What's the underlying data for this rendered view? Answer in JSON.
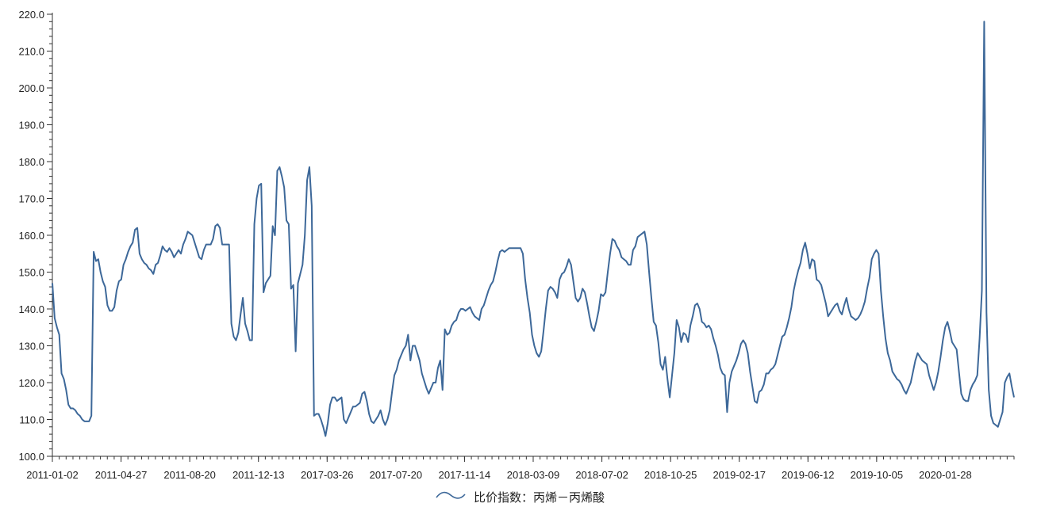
{
  "chart_data": {
    "type": "line",
    "title": "",
    "xlabel": "",
    "ylabel": "",
    "ylim": [
      100,
      220
    ],
    "y_ticks": [
      100.0,
      110.0,
      120.0,
      130.0,
      140.0,
      150.0,
      160.0,
      170.0,
      180.0,
      190.0,
      200.0,
      210.0,
      220.0
    ],
    "y_tick_labels": [
      "100.0",
      "110.0",
      "120.0",
      "130.0",
      "140.0",
      "150.0",
      "160.0",
      "170.0",
      "180.0",
      "190.0",
      "200.0",
      "210.0",
      "220.0"
    ],
    "x_tick_labels": [
      "2011-01-02",
      "2011-04-27",
      "2011-08-20",
      "2011-12-13",
      "2017-03-26",
      "2017-07-20",
      "2017-11-14",
      "2018-03-09",
      "2018-07-02",
      "2018-10-25",
      "2019-02-17",
      "2019-06-12",
      "2019-10-05",
      "2020-01-28"
    ],
    "grid": false,
    "legend_position": "bottom-center",
    "series": [
      {
        "name": "比价指数：丙烯－丙烯酸",
        "color": "#3d6899",
        "values": [
          147.0,
          137.5,
          135.0,
          133.0,
          122.5,
          121.0,
          118.0,
          114.0,
          113.0,
          113.0,
          112.5,
          111.5,
          111.0,
          110.0,
          109.5,
          109.5,
          109.5,
          111.0,
          155.5,
          153.0,
          153.5,
          150.0,
          147.5,
          146.0,
          141.0,
          139.5,
          139.5,
          140.5,
          145.0,
          147.5,
          148.0,
          152.0,
          153.5,
          155.5,
          157.0,
          158.0,
          161.5,
          162.0,
          155.0,
          153.5,
          152.5,
          152.0,
          151.0,
          150.5,
          149.5,
          152.0,
          152.5,
          154.5,
          157.0,
          156.0,
          155.5,
          156.5,
          155.5,
          154.0,
          155.0,
          156.0,
          155.0,
          157.5,
          159.0,
          161.0,
          160.5,
          160.0,
          158.0,
          156.0,
          154.0,
          153.5,
          156.0,
          157.5,
          157.5,
          157.5,
          159.0,
          162.5,
          163.0,
          162.0,
          157.5,
          157.5,
          157.5,
          157.5,
          136.0,
          132.5,
          131.5,
          133.5,
          138.5,
          143.0,
          136.0,
          134.0,
          131.5,
          131.5,
          163.0,
          170.0,
          173.5,
          174.0,
          144.5,
          147.0,
          148.0,
          149.0,
          162.5,
          160.0,
          177.5,
          178.5,
          176.0,
          173.0,
          164.0,
          163.0,
          145.5,
          146.5,
          128.5,
          147.0,
          149.5,
          152.0,
          160.0,
          175.0,
          178.5,
          168.0,
          111.0,
          111.5,
          111.5,
          110.0,
          108.0,
          105.5,
          109.0,
          114.0,
          116.0,
          116.0,
          115.0,
          115.5,
          116.0,
          110.0,
          109.0,
          110.5,
          112.0,
          113.5,
          113.5,
          114.0,
          114.5,
          117.0,
          117.5,
          115.0,
          111.5,
          109.5,
          109.0,
          110.0,
          111.0,
          112.5,
          110.0,
          108.5,
          110.0,
          112.5,
          117.5,
          122.0,
          123.5,
          126.0,
          127.5,
          129.0,
          130.0,
          133.0,
          126.0,
          130.0,
          130.0,
          128.0,
          126.0,
          122.5,
          120.5,
          118.5,
          117.0,
          118.5,
          120.0,
          120.0,
          124.0,
          126.0,
          118.0,
          134.5,
          133.0,
          133.5,
          135.5,
          136.5,
          137.0,
          139.0,
          140.0,
          140.0,
          139.5,
          140.0,
          140.5,
          139.0,
          138.0,
          137.5,
          137.0,
          140.0,
          141.0,
          143.0,
          145.0,
          146.5,
          147.5,
          150.0,
          153.0,
          155.5,
          156.0,
          155.5,
          156.0,
          156.5,
          156.5,
          156.5,
          156.5,
          156.5,
          156.5,
          155.0,
          148.0,
          143.0,
          139.0,
          133.0,
          130.0,
          128.0,
          127.0,
          128.5,
          134.0,
          140.0,
          145.0,
          146.0,
          145.5,
          144.5,
          143.0,
          148.0,
          149.5,
          150.0,
          151.5,
          153.5,
          152.0,
          147.5,
          143.0,
          142.0,
          143.0,
          145.5,
          144.5,
          141.5,
          138.0,
          135.0,
          134.0,
          136.5,
          139.5,
          144.0,
          143.5,
          144.5,
          150.0,
          155.0,
          159.0,
          158.5,
          157.0,
          156.0,
          154.0,
          153.5,
          153.0,
          152.0,
          152.0,
          156.0,
          157.0,
          159.5,
          160.0,
          160.5,
          161.0,
          157.5,
          150.0,
          143.0,
          136.5,
          135.5,
          131.0,
          125.0,
          123.5,
          127.0,
          121.0,
          116.0,
          122.0,
          128.0,
          137.0,
          135.0,
          131.0,
          133.5,
          133.0,
          131.0,
          135.5,
          138.0,
          141.0,
          141.5,
          140.0,
          136.5,
          136.0,
          135.0,
          135.5,
          134.5,
          132.0,
          130.0,
          127.5,
          124.0,
          122.5,
          122.0,
          112.0,
          120.0,
          123.0,
          124.5,
          126.0,
          128.0,
          130.5,
          131.5,
          130.5,
          128.0,
          123.0,
          119.0,
          115.0,
          114.5,
          117.5,
          118.0,
          119.5,
          122.5,
          122.5,
          123.5,
          124.0,
          125.0,
          127.5,
          130.0,
          132.5,
          133.0,
          135.0,
          137.5,
          140.5,
          145.0,
          148.0,
          150.5,
          152.5,
          156.0,
          158.0,
          155.0,
          151.0,
          153.5,
          153.0,
          148.0,
          147.5,
          146.5,
          144.0,
          141.5,
          138.0,
          139.0,
          140.0,
          141.0,
          141.5,
          139.5,
          138.5,
          141.0,
          143.0,
          140.0,
          138.0,
          137.5,
          137.0,
          137.5,
          138.5,
          140.0,
          142.0,
          145.5,
          148.5,
          153.5,
          155.0,
          156.0,
          155.0,
          145.0,
          138.0,
          132.0,
          128.0,
          126.0,
          123.0,
          122.0,
          121.0,
          120.5,
          119.5,
          118.0,
          117.0,
          118.5,
          120.0,
          123.0,
          126.0,
          128.0,
          127.0,
          126.0,
          125.5,
          125.0,
          122.0,
          120.0,
          118.0,
          120.0,
          123.0,
          127.0,
          131.5,
          135.0,
          136.5,
          134.0,
          131.0,
          130.0,
          129.0,
          123.0,
          117.0,
          115.5,
          115.0,
          115.0,
          118.0,
          119.5,
          120.5,
          122.0,
          132.0,
          145.0,
          218.0,
          139.0,
          118.0,
          111.0,
          109.0,
          108.5,
          108.0,
          110.0,
          112.0,
          120.0,
          121.5,
          122.5,
          119.0,
          116.0
        ]
      }
    ]
  }
}
